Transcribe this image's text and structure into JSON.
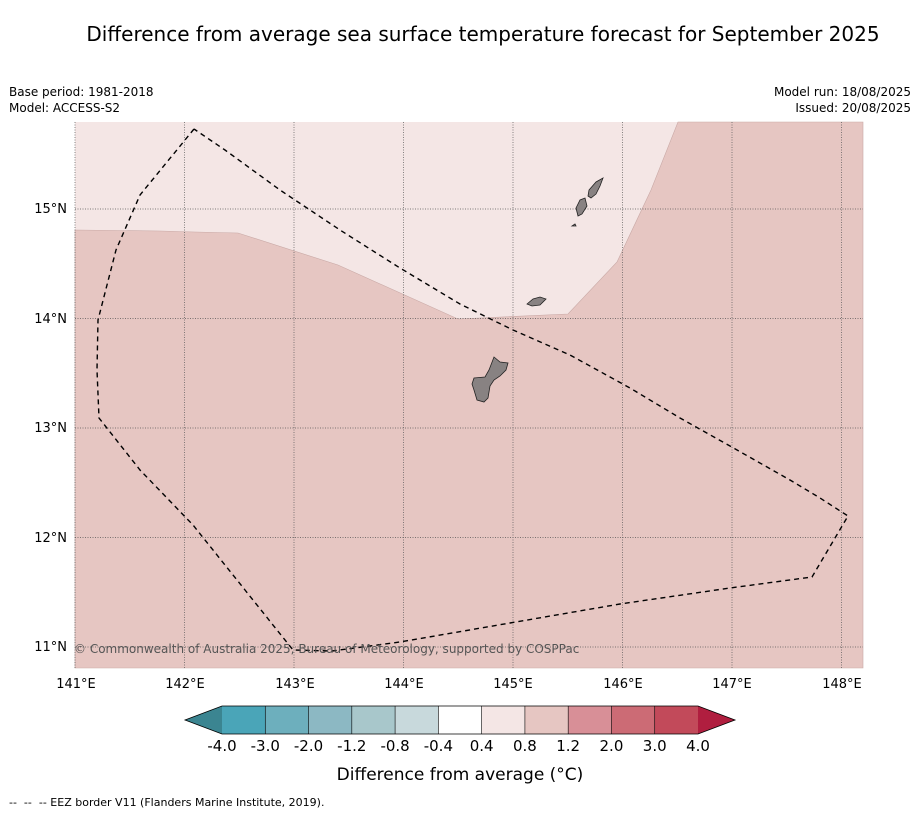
{
  "title": "Difference from average sea surface temperature forecast for September 2025",
  "meta_left": {
    "base_period": "Base period: 1981-2018",
    "model": "Model: ACCESS-S2"
  },
  "meta_right": {
    "model_run": "Model run: 18/08/2025",
    "issued": "Issued: 20/08/2025"
  },
  "copyright": "© Commonwealth of Australia 2025, Bureau of Meteorology, supported by COSPPac",
  "colors": {
    "anomaly_0_4_to_0_8": "#f4e6e5",
    "anomaly_0_8_to_1_2": "#e6c6c2",
    "land": "#888282",
    "eez_border": "#000000"
  },
  "map": {
    "lon_ticks": [
      "141°E",
      "142°E",
      "143°E",
      "144°E",
      "145°E",
      "146°E",
      "147°E",
      "148°E"
    ],
    "lat_ticks": [
      "15°N",
      "14°N",
      "13°N",
      "12°N",
      "11°N"
    ]
  },
  "colorbar": {
    "title": "Difference from average (°C)",
    "tick_labels": [
      "-4.0",
      "-3.0",
      "-2.0",
      "-1.2",
      "-0.8",
      "-0.4",
      "0.4",
      "0.8",
      "1.2",
      "2.0",
      "3.0",
      "4.0"
    ],
    "bins": [
      {
        "color": "#4aa5b8"
      },
      {
        "color": "#6dafbd"
      },
      {
        "color": "#8cb8c3"
      },
      {
        "color": "#a8c7cb"
      },
      {
        "color": "#c8d9dc"
      },
      {
        "color": "#ffffff"
      },
      {
        "color": "#f4e6e5"
      },
      {
        "color": "#e6c6c2"
      },
      {
        "color": "#d88f97"
      },
      {
        "color": "#cc6b75"
      },
      {
        "color": "#c24a5a"
      }
    ],
    "low_extend_color": "#3b8591",
    "high_extend_color": "#b01e3f"
  },
  "legend_footer": "--  --  -- EEZ border V11 (Flanders Marine Institute, 2019)."
}
